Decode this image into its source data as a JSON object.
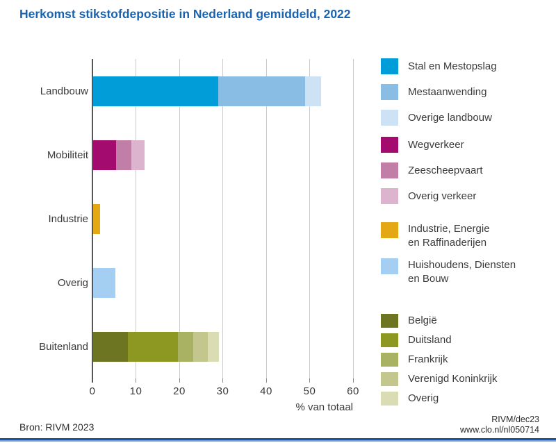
{
  "page": {
    "source": "Bron: RIVM 2023",
    "credit_line1": "RIVM/dec23",
    "credit_line2": "www.clo.nl/nl050714",
    "colors": {
      "title": "#1a63ae",
      "gridline": "#cacaca",
      "axis": "#55565a",
      "axis_tick": "#8a8a8a",
      "text": "#3a3a3a",
      "footer_dark": "#1a54a0",
      "footer_light": "#79a3d9"
    }
  },
  "chart_data": {
    "type": "bar",
    "orientation": "horizontal",
    "stacked": true,
    "title": "Herkomst stikstofdepositie in Nederland gemiddeld, 2022",
    "xlabel": "% van totaal",
    "xlim": [
      0,
      60
    ],
    "xticks": [
      0,
      10,
      20,
      30,
      40,
      50,
      60
    ],
    "grid": true,
    "legend_position": "right",
    "categories": [
      "Landbouw",
      "Mobiliteit",
      "Industrie",
      "Overig",
      "Buitenland"
    ],
    "rows": [
      {
        "category": "Landbouw",
        "segments": [
          {
            "label": "Stal en Mestopslag",
            "value": 29,
            "color": "#009dd9"
          },
          {
            "label": "Mestaanwending",
            "value": 20,
            "color": "#8abde4"
          },
          {
            "label": "Overige landbouw",
            "value": 3.7,
            "color": "#cde2f5"
          }
        ]
      },
      {
        "category": "Mobiliteit",
        "segments": [
          {
            "label": "Wegverkeer",
            "value": 5.4,
            "color": "#a30c6e"
          },
          {
            "label": "Zeescheepvaart",
            "value": 3.6,
            "color": "#c17ea7"
          },
          {
            "label": "Overig verkeer",
            "value": 3.0,
            "color": "#dcb4cd"
          }
        ]
      },
      {
        "category": "Industrie",
        "segments": [
          {
            "label": "Industrie, Energie en Raffinaderijen",
            "value": 1.8,
            "color": "#e3a814"
          }
        ]
      },
      {
        "category": "Overig",
        "segments": [
          {
            "label": "Huishoudens, Diensten en Bouw",
            "value": 5.3,
            "color": "#a5cff2"
          }
        ]
      },
      {
        "category": "Buitenland",
        "segments": [
          {
            "label": "België",
            "value": 8.2,
            "color": "#6e7522"
          },
          {
            "label": "Duitsland",
            "value": 11.5,
            "color": "#8c9821"
          },
          {
            "label": "Frankrijk",
            "value": 3.5,
            "color": "#a9b162"
          },
          {
            "label": "Verenigd Koninkrijk",
            "value": 3.4,
            "color": "#c3c78d"
          },
          {
            "label": "Overig",
            "value": 2.5,
            "color": "#dadcb4"
          }
        ]
      }
    ],
    "legend_groups": [
      {
        "items": [
          {
            "label": "Stal en Mestopslag",
            "color": "#009dd9"
          },
          {
            "label": "Mestaanwending",
            "color": "#8abde4"
          },
          {
            "label": "Overige landbouw",
            "color": "#cde2f5"
          }
        ]
      },
      {
        "items": [
          {
            "label": "Wegverkeer",
            "color": "#a30c6e"
          },
          {
            "label": "Zeescheepvaart",
            "color": "#c17ea7"
          },
          {
            "label": "Overig verkeer",
            "color": "#dcb4cd"
          }
        ]
      },
      {
        "items": [
          {
            "label": "Industrie, Energie\nen Raffinaderijen",
            "color": "#e3a814"
          },
          {
            "label": "Huishoudens, Diensten\nen Bouw",
            "color": "#a5cff2"
          }
        ]
      },
      {
        "items": [
          {
            "label": "België",
            "color": "#6e7522"
          },
          {
            "label": "Duitsland",
            "color": "#8c9821"
          },
          {
            "label": "Frankrijk",
            "color": "#a9b162"
          },
          {
            "label": "Verenigd Koninkrijk",
            "color": "#c3c78d"
          },
          {
            "label": "Overig",
            "color": "#dadcb4"
          }
        ]
      }
    ]
  }
}
